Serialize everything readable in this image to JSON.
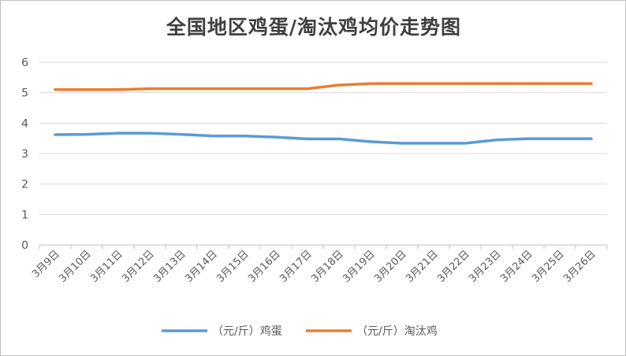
{
  "chart_data": {
    "type": "line",
    "title": "全国地区鸡蛋/淘汰鸡均价走势图",
    "categories": [
      "3月9日",
      "3月10日",
      "3月11日",
      "3月12日",
      "3月13日",
      "3月14日",
      "3月15日",
      "3月16日",
      "3月17日",
      "3月18日",
      "3月19日",
      "3月20日",
      "3月21日",
      "3月22日",
      "3月23日",
      "3月24日",
      "3月25日",
      "3月26日"
    ],
    "series": [
      {
        "name": "（元/斤）鸡蛋",
        "color": "#5b9bd5",
        "values": [
          3.62,
          3.63,
          3.67,
          3.67,
          3.63,
          3.58,
          3.58,
          3.54,
          3.48,
          3.48,
          3.39,
          3.34,
          3.34,
          3.34,
          3.45,
          3.49,
          3.49,
          3.49
        ]
      },
      {
        "name": "（元/斤）淘汰鸡",
        "color": "#ed7d31",
        "values": [
          5.1,
          5.1,
          5.1,
          5.13,
          5.13,
          5.13,
          5.13,
          5.13,
          5.13,
          5.25,
          5.3,
          5.3,
          5.3,
          5.3,
          5.3,
          5.3,
          5.3,
          5.3
        ]
      }
    ],
    "y_ticks": [
      "0",
      "1",
      "2",
      "3",
      "4",
      "5",
      "6"
    ],
    "ylim": [
      0,
      6
    ],
    "grid": true,
    "legend": "bottom"
  }
}
